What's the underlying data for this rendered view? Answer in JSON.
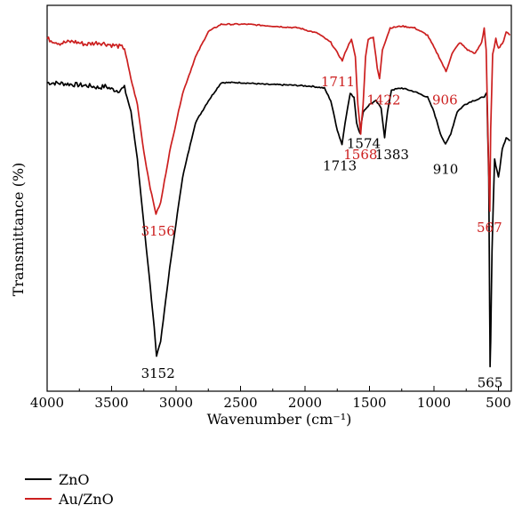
{
  "chart_data": {
    "type": "line",
    "xlabel": "Wavenumber (cm⁻¹)",
    "ylabel": "Transmittance (%)",
    "xlim": [
      4000,
      400
    ],
    "x_reversed": true,
    "x_ticks": [
      "4000",
      "3500",
      "3000",
      "2500",
      "2000",
      "1500",
      "1000",
      "500"
    ],
    "x_tick_values": [
      4000,
      3500,
      3000,
      2500,
      2000,
      1500,
      1000,
      500
    ],
    "ylim": [
      0,
      100
    ],
    "y_ticks_shown": false,
    "grid": false,
    "legend_position": "bottom-left",
    "series": [
      {
        "name": "ZnO",
        "color": "#000000",
        "points": [
          [
            4000,
            81
          ],
          [
            3900,
            80.8
          ],
          [
            3800,
            80.5
          ],
          [
            3700,
            80.2
          ],
          [
            3650,
            80
          ],
          [
            3600,
            79.6
          ],
          [
            3550,
            80
          ],
          [
            3500,
            79.2
          ],
          [
            3450,
            78.8
          ],
          [
            3400,
            79.6
          ],
          [
            3350,
            73
          ],
          [
            3300,
            60
          ],
          [
            3250,
            42
          ],
          [
            3200,
            25
          ],
          [
            3170,
            14
          ],
          [
            3152,
            6
          ],
          [
            3120,
            10
          ],
          [
            3050,
            30
          ],
          [
            2950,
            55
          ],
          [
            2850,
            70
          ],
          [
            2750,
            76
          ],
          [
            2650,
            81
          ],
          [
            2500,
            81
          ],
          [
            2300,
            80.5
          ],
          [
            2100,
            80.3
          ],
          [
            1950,
            80
          ],
          [
            1850,
            79.5
          ],
          [
            1800,
            76
          ],
          [
            1750,
            68
          ],
          [
            1713,
            64
          ],
          [
            1690,
            70
          ],
          [
            1650,
            78
          ],
          [
            1620,
            77
          ],
          [
            1600,
            70
          ],
          [
            1574,
            67
          ],
          [
            1550,
            73
          ],
          [
            1500,
            75
          ],
          [
            1450,
            76
          ],
          [
            1410,
            74
          ],
          [
            1383,
            66
          ],
          [
            1360,
            73
          ],
          [
            1330,
            79
          ],
          [
            1250,
            79.5
          ],
          [
            1150,
            78.5
          ],
          [
            1050,
            77
          ],
          [
            1000,
            73
          ],
          [
            950,
            67
          ],
          [
            910,
            64
          ],
          [
            870,
            67
          ],
          [
            820,
            73
          ],
          [
            760,
            75
          ],
          [
            700,
            76
          ],
          [
            650,
            76.5
          ],
          [
            600,
            77.5
          ],
          [
            590,
            78
          ],
          [
            575,
            55
          ],
          [
            568,
            20
          ],
          [
            565,
            3
          ],
          [
            560,
            10
          ],
          [
            550,
            35
          ],
          [
            530,
            60
          ],
          [
            500,
            55
          ],
          [
            470,
            63
          ],
          [
            440,
            66
          ],
          [
            410,
            65
          ]
        ]
      },
      {
        "name": "Au/ZnO",
        "color": "#cc1f1f",
        "points": [
          [
            4000,
            93
          ],
          [
            3900,
            91.8
          ],
          [
            3800,
            92.3
          ],
          [
            3700,
            91.5
          ],
          [
            3600,
            92
          ],
          [
            3500,
            91.3
          ],
          [
            3450,
            91
          ],
          [
            3400,
            90.5
          ],
          [
            3350,
            82
          ],
          [
            3300,
            75
          ],
          [
            3250,
            62
          ],
          [
            3200,
            52
          ],
          [
            3156,
            45
          ],
          [
            3120,
            48
          ],
          [
            3050,
            62
          ],
          [
            2950,
            78
          ],
          [
            2850,
            88
          ],
          [
            2750,
            95
          ],
          [
            2650,
            97
          ],
          [
            2450,
            97
          ],
          [
            2250,
            96.5
          ],
          [
            2050,
            96
          ],
          [
            1900,
            94.5
          ],
          [
            1800,
            92
          ],
          [
            1711,
            87
          ],
          [
            1680,
            90
          ],
          [
            1640,
            93
          ],
          [
            1610,
            88
          ],
          [
            1590,
            75
          ],
          [
            1568,
            67
          ],
          [
            1550,
            75
          ],
          [
            1530,
            88
          ],
          [
            1510,
            93
          ],
          [
            1470,
            93.5
          ],
          [
            1440,
            85
          ],
          [
            1422,
            82
          ],
          [
            1400,
            90
          ],
          [
            1340,
            96
          ],
          [
            1250,
            96.5
          ],
          [
            1150,
            96
          ],
          [
            1050,
            94
          ],
          [
            960,
            88
          ],
          [
            906,
            84
          ],
          [
            860,
            89
          ],
          [
            800,
            92
          ],
          [
            740,
            90
          ],
          [
            680,
            89
          ],
          [
            630,
            92
          ],
          [
            610,
            96
          ],
          [
            595,
            90
          ],
          [
            580,
            65
          ],
          [
            572,
            52
          ],
          [
            567,
            46
          ],
          [
            560,
            68
          ],
          [
            545,
            89
          ],
          [
            520,
            93
          ],
          [
            500,
            90.5
          ],
          [
            470,
            91.5
          ],
          [
            440,
            95
          ],
          [
            410,
            94
          ]
        ]
      }
    ],
    "annotations": [
      {
        "text": "3156",
        "x": 3140,
        "y": 39,
        "color": "#cc1f1f"
      },
      {
        "text": "1711",
        "x": 1745,
        "y": 80,
        "color": "#cc1f1f"
      },
      {
        "text": "1422",
        "x": 1390,
        "y": 75,
        "color": "#cc1f1f"
      },
      {
        "text": "906",
        "x": 915,
        "y": 75,
        "color": "#cc1f1f"
      },
      {
        "text": "1568",
        "x": 1570,
        "y": 60,
        "color": "#cc1f1f"
      },
      {
        "text": "567",
        "x": 570,
        "y": 40,
        "color": "#cc1f1f"
      },
      {
        "text": "1713",
        "x": 1730,
        "y": 57,
        "color": "#000000"
      },
      {
        "text": "1574",
        "x": 1545,
        "y": 63,
        "color": "#000000"
      },
      {
        "text": "1383",
        "x": 1325,
        "y": 60,
        "color": "#000000"
      },
      {
        "text": "910",
        "x": 910,
        "y": 56,
        "color": "#000000"
      },
      {
        "text": "3152",
        "x": 3140,
        "y": 0,
        "color": "#000000"
      },
      {
        "text": "565",
        "x": 565,
        "y": -2.5,
        "color": "#000000"
      }
    ]
  },
  "legend": {
    "items": [
      {
        "label": "ZnO",
        "color": "#000000"
      },
      {
        "label": "Au/ZnO",
        "color": "#cc1f1f"
      }
    ]
  }
}
